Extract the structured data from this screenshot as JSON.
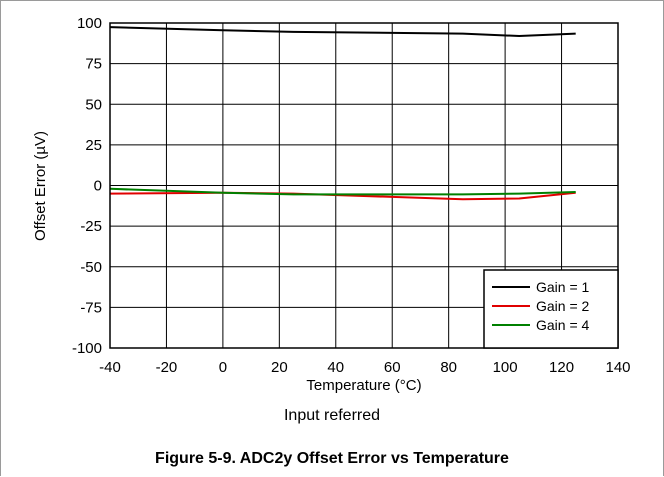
{
  "chart_data": {
    "type": "line",
    "xlabel": "Temperature (°C)",
    "ylabel": "Offset Error (µV)",
    "xlim": [
      -40,
      140
    ],
    "ylim": [
      -100,
      100
    ],
    "xticks": [
      -40,
      -20,
      0,
      20,
      40,
      60,
      80,
      100,
      120,
      140
    ],
    "yticks": [
      -100,
      -75,
      -50,
      -25,
      0,
      25,
      50,
      75,
      100
    ],
    "grid": true,
    "legend_position": "bottom-right",
    "x": [
      -40,
      0,
      25,
      85,
      105,
      125
    ],
    "series": [
      {
        "name": "Gain = 1",
        "color": "#000000",
        "values": [
          97.5,
          95.5,
          94.5,
          93.5,
          92,
          93.5
        ]
      },
      {
        "name": "Gain = 2",
        "color": "#e00000",
        "values": [
          -5,
          -4.5,
          -5,
          -8.5,
          -8,
          -4.5
        ]
      },
      {
        "name": "Gain = 4",
        "color": "#008000",
        "values": [
          -2,
          -4.5,
          -5.5,
          -5.5,
          -5,
          -4
        ]
      }
    ]
  },
  "note": "Input referred",
  "caption": "Figure 5-9. ADC2y Offset Error vs Temperature"
}
